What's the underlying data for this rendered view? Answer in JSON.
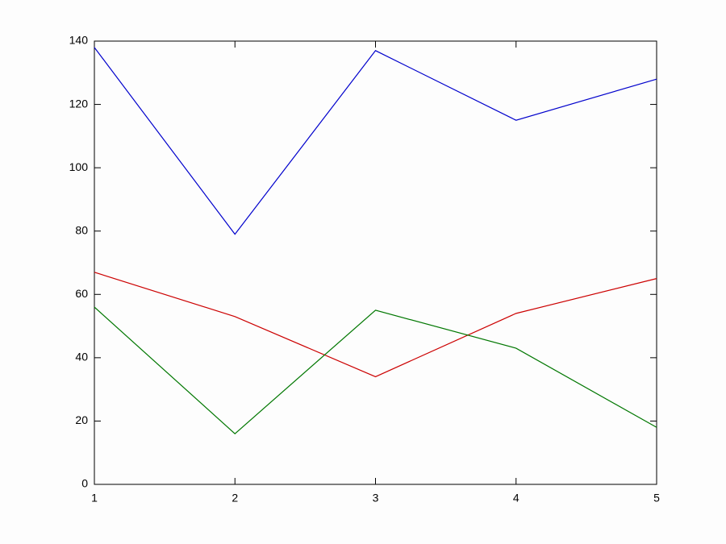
{
  "chart_data": {
    "type": "line",
    "x": [
      1,
      2,
      3,
      4,
      5
    ],
    "series": [
      {
        "color": "#0000cc",
        "values": [
          138,
          79,
          137,
          115,
          128
        ]
      },
      {
        "color": "#cc0000",
        "values": [
          67,
          53,
          34,
          54,
          65
        ]
      },
      {
        "color": "#007700",
        "values": [
          56,
          16,
          55,
          43,
          18
        ]
      }
    ],
    "xlim": [
      1,
      5
    ],
    "xticks": [
      1,
      2,
      3,
      4,
      5
    ],
    "ylim": [
      0,
      140
    ],
    "yticks": [
      0,
      20,
      40,
      60,
      80,
      100,
      120,
      140
    ],
    "grid": false
  }
}
